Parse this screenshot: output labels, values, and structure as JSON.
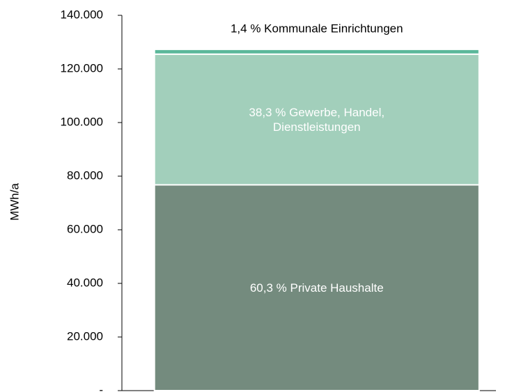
{
  "chart_data": {
    "type": "stacked_bar",
    "categories": [
      null
    ],
    "y_label": "MWh/a",
    "series": [
      {
        "name": "60,3 % Private Haushalte",
        "color": "#748b7e",
        "label_color": "#ffffff",
        "values": [
          76760
        ]
      },
      {
        "name": "38,3 % Gewerbe, Handel, Dienstleistungen",
        "color": "#a2cfbb",
        "label_color": "#ffffff",
        "values": [
          48760
        ]
      },
      {
        "name": "1,4 % Kommunale Einrichtungen",
        "color": "#5bb89a",
        "label_color": "#000000",
        "values": [
          1780
        ]
      }
    ],
    "ylim": [
      0,
      140000
    ],
    "yticks": [
      {
        "value": 0,
        "label": "-"
      },
      {
        "value": 20000,
        "label": "20.000"
      },
      {
        "value": 40000,
        "label": "40.000"
      },
      {
        "value": 60000,
        "label": "60.000"
      },
      {
        "value": 80000,
        "label": "80.000"
      },
      {
        "value": 100000,
        "label": "100.000"
      },
      {
        "value": 120000,
        "label": "120.000"
      },
      {
        "value": 140000,
        "label": "140.000"
      }
    ],
    "grid": false
  }
}
